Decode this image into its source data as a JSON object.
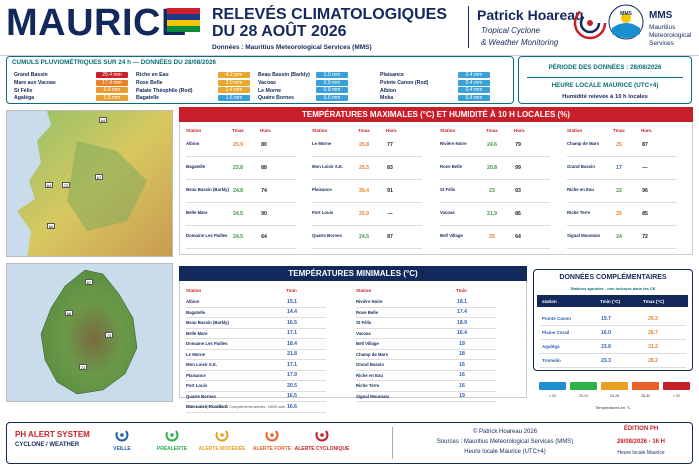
{
  "header": {
    "title": "MAURICE",
    "subtitle_line1": "RELEVÉS CLIMATOLOGIQUES",
    "subtitle_line2": "DU 28 AOÛT 2026",
    "source": "Données : Mauritius Meteorological Services (MMS)",
    "brand_name": "Patrick Hoareau",
    "brand_line1": "Tropical Cyclone",
    "brand_line2": "& Weather Monitoring",
    "mms_title": "MMS",
    "mms_line1": "Mauritius",
    "mms_line2": "Meteorological",
    "mms_line3": "Services",
    "mms_logo_text": "MMS"
  },
  "rainfall": {
    "title": "CUMULS PLUVIOMÉTRIQUES SUR 24 h — DONNÉES DU 28/08/2026",
    "columns": [
      [
        {
          "name": "Grand Bassin",
          "value": "29.4 mm",
          "color": "#c8202a"
        },
        {
          "name": "Mare aux Vacoas",
          "value": "17.4 mm",
          "color": "#e8802a"
        },
        {
          "name": "St Félix",
          "value": "6.6 mm",
          "color": "#e89a30"
        },
        {
          "name": "Agaléga",
          "value": "5.6 mm",
          "color": "#e8a030"
        }
      ],
      [
        {
          "name": "Riche en Eau",
          "value": "4.2 mm",
          "color": "#e8a830"
        },
        {
          "name": "Rose Belle",
          "value": "3.0 mm",
          "color": "#e8a830"
        },
        {
          "name": "Patate Théophile (Rod)",
          "value": "2.4 mm",
          "color": "#e8a830"
        },
        {
          "name": "Bagatelle",
          "value": "1.6 mm",
          "color": "#3aa0d8"
        }
      ],
      [
        {
          "name": "Beau Bassin (Barkly)",
          "value": "1.0 mm",
          "color": "#3aa0d8"
        },
        {
          "name": "Vacoas",
          "value": "0.9 mm",
          "color": "#3aa0d8"
        },
        {
          "name": "Le Morne",
          "value": "0.8 mm",
          "color": "#3aa0d8"
        },
        {
          "name": "Quatre Bornes",
          "value": "0.6 mm",
          "color": "#3aa0d8"
        }
      ],
      [
        {
          "name": "Plaisance",
          "value": "0.4 mm",
          "color": "#3aa0d8"
        },
        {
          "name": "Pointe Canon (Rod)",
          "value": "0.4 mm",
          "color": "#3aa0d8"
        },
        {
          "name": "Albion",
          "value": "0.4 mm",
          "color": "#3aa0d8"
        },
        {
          "name": "Moka",
          "value": "0.4 mm",
          "color": "#3aa0d8"
        }
      ]
    ]
  },
  "period": {
    "line1": "PÉRIODE DES DONNÉES : 28/08/2026",
    "line2": "HEURE LOCALE MAURICE (UTC+4)",
    "line3": "Humidité relevée à 10 h locales"
  },
  "map1_labels": [
    "64",
    "67",
    "72",
    "64",
    "64"
  ],
  "map2_labels": [
    "67",
    "66",
    "73",
    "72"
  ],
  "tmax": {
    "title": "TEMPÉRATURES MAXIMALES (°C) ET HUMIDITÉ À 10 H LOCALES (%)",
    "headers": {
      "station": "Station",
      "tmax": "Tmax",
      "hum": "Hum."
    },
    "columns": [
      [
        {
          "s": "Albion",
          "t": "25.9",
          "h": "80",
          "c": "#e8802a"
        },
        {
          "s": "Bagatelle",
          "t": "23.8",
          "h": "88",
          "c": "#3a9a40"
        },
        {
          "s": "Beau Bassin (Barkly)",
          "t": "24.8",
          "h": "74",
          "c": "#3a9a40"
        },
        {
          "s": "Belle Mare",
          "t": "24.5",
          "h": "90",
          "c": "#3a9a40"
        },
        {
          "s": "Domaine Les Pailles",
          "t": "24.5",
          "h": "64",
          "c": "#3a9a40"
        }
      ],
      [
        {
          "s": "Le Morne",
          "t": "25.8",
          "h": "77",
          "c": "#e8802a"
        },
        {
          "s": "Mon Loisir S.E.",
          "t": "25.5",
          "h": "83",
          "c": "#e8802a"
        },
        {
          "s": "Plaisance",
          "t": "26.4",
          "h": "91",
          "c": "#e8802a"
        },
        {
          "s": "Port Louis",
          "t": "25.9",
          "h": "—",
          "c": "#e8802a"
        },
        {
          "s": "Quatre Bornes",
          "t": "24.5",
          "h": "87",
          "c": "#3a9a40"
        }
      ],
      [
        {
          "s": "Rivière Noire",
          "t": "24.6",
          "h": "79",
          "c": "#3a9a40"
        },
        {
          "s": "Rose Belle",
          "t": "20.8",
          "h": "99",
          "c": "#3a9a40"
        },
        {
          "s": "St Félix",
          "t": "23",
          "h": "93",
          "c": "#3a9a40"
        },
        {
          "s": "Vacoas",
          "t": "21.9",
          "h": "86",
          "c": "#3a9a40"
        },
        {
          "s": "Bell Village",
          "t": "25",
          "h": "64",
          "c": "#e8802a"
        }
      ],
      [
        {
          "s": "Champ de Mars",
          "t": "25",
          "h": "87",
          "c": "#e8802a"
        },
        {
          "s": "Grand Bassin",
          "t": "17",
          "h": "—",
          "c": "#2b5fb0"
        },
        {
          "s": "Riche en Eau",
          "t": "22",
          "h": "96",
          "c": "#3a9a40"
        },
        {
          "s": "Riche Terre",
          "t": "25",
          "h": "85",
          "c": "#e8802a"
        },
        {
          "s": "Signal Mountain",
          "t": "24",
          "h": "72",
          "c": "#3a9a40"
        }
      ]
    ]
  },
  "tmin": {
    "title": "TEMPÉRATURES MINIMALES (°C)",
    "headers": {
      "station": "Station",
      "tmin": "Tmin"
    },
    "left": [
      {
        "s": "Albion",
        "v": "15.1"
      },
      {
        "s": "Bagatelle",
        "v": "14.4"
      },
      {
        "s": "Beau Bassin (Barkly)",
        "v": "16.5"
      },
      {
        "s": "Belle Mare",
        "v": "17.1"
      },
      {
        "s": "Domaine Les Pailles",
        "v": "18.4"
      },
      {
        "s": "Le Morne",
        "v": "21.8"
      },
      {
        "s": "Mon Loisir S.E.",
        "v": "17.1"
      },
      {
        "s": "Plaisance",
        "v": "17.9"
      },
      {
        "s": "Port Louis",
        "v": "20.5"
      },
      {
        "s": "Quatre Bornes",
        "v": "16.5"
      },
      {
        "s": "Mon Loisir Rouillard",
        "v": "16.6"
      }
    ],
    "right": [
      {
        "s": "Rivière Noire",
        "v": "18.1"
      },
      {
        "s": "Rose Belle",
        "v": "17.4"
      },
      {
        "s": "St Félix",
        "v": "18.9"
      },
      {
        "s": "Vacoas",
        "v": "16.4"
      },
      {
        "s": "Bell Village",
        "v": "19"
      },
      {
        "s": "Champ de Mars",
        "v": "18"
      },
      {
        "s": "Grand Bassin",
        "v": "16"
      },
      {
        "s": "Riche en Eau",
        "v": "16"
      },
      {
        "s": "Riche Terre",
        "v": "16"
      },
      {
        "s": "Signal Mountain",
        "v": "19"
      }
    ],
    "note": "Décimales : (0.1V MMS  •  Compléments arrivés : MMS web"
  },
  "complementary": {
    "title": "DONNÉES COMPLÉMENTAIRES",
    "subtitle": "Stations ajoutées - non incluses dans les CE",
    "headers": {
      "station": "station",
      "tmin": "Tmin (°C)",
      "tmax": "Tmax (°C)"
    },
    "rows": [
      {
        "s": "Pointe Canon",
        "min": "19.7",
        "max": "26.3"
      },
      {
        "s": "Plaine Corail",
        "min": "16.0",
        "max": "26.7"
      },
      {
        "s": "Agaléga",
        "min": "23.8",
        "max": "31.2"
      },
      {
        "s": "Tromelin",
        "min": "23.3",
        "max": "28.2"
      }
    ]
  },
  "legend": {
    "items": [
      {
        "label": "< 20",
        "color": "#1e8fd0"
      },
      {
        "label": "20-24",
        "color": "#2db34a"
      },
      {
        "label": "24-28",
        "color": "#e8a020"
      },
      {
        "label": "28-32",
        "color": "#e8602a"
      },
      {
        "label": "> 32",
        "color": "#c8202a"
      }
    ],
    "caption": "Températures en °C"
  },
  "footer": {
    "alert_title": "PH ALERT SYSTEM",
    "alert_sub": "CYCLONE / WEATHER",
    "levels": [
      {
        "label": "VEILLE",
        "color": "#1e5fb0"
      },
      {
        "label": "PRÉALERTE",
        "color": "#2db34a"
      },
      {
        "label": "ALERTE MODÉRÉE",
        "color": "#e8a020"
      },
      {
        "label": "ALERTE FORTE",
        "color": "#e8602a"
      },
      {
        "label": "ALERTE CYCLONIQUE",
        "color": "#c8202a"
      }
    ],
    "copyright": "© Patrick Hoareau 2026",
    "sources": "Sources : Mauritius Meteorological Services (MMS)",
    "time": "Heure locale Maurice (UTC+4)",
    "edition_label": "ÉDITION PH",
    "edition_date": "28/08/2026 - 16 H",
    "edition_time": "Heure locale Maurice"
  }
}
